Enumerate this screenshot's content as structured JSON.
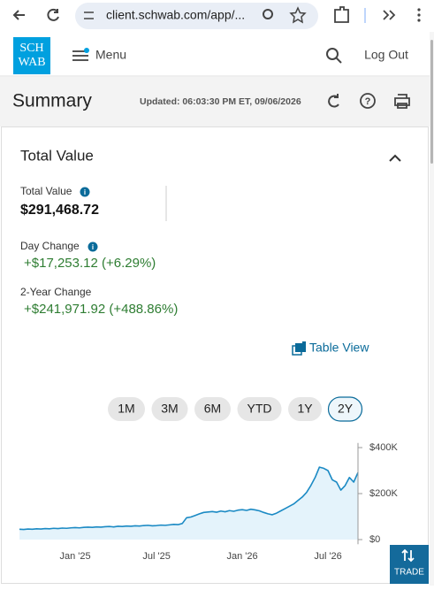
{
  "browser": {
    "url": "client.schwab.com/app/..."
  },
  "header": {
    "logo": [
      "SCH",
      "WAB"
    ],
    "menu": "Menu",
    "logout": "Log Out"
  },
  "summary": {
    "title": "Summary",
    "updated": "Updated: 06:03:30 PM ET, 09/06/2026"
  },
  "card": {
    "title": "Total Value",
    "total_label": "Total Value",
    "total_value": "$291,468.72",
    "day_label": "Day Change",
    "day_value": "+$17,253.12 (+6.29%)",
    "change_label": "2-Year Change",
    "change_value": "+$241,971.92 (+488.86%)",
    "table_view": "Table View",
    "ranges": [
      "1M",
      "3M",
      "6M",
      "YTD",
      "1Y",
      "2Y"
    ],
    "selected_range": "2Y"
  },
  "chart_data": {
    "type": "line",
    "color": "#1b8ac4",
    "fill_color": "#e4f3fb",
    "categories": [
      null,
      null,
      null,
      null,
      null,
      null,
      null,
      null,
      null,
      null,
      null,
      null,
      null,
      "Jan '25",
      null,
      null,
      null,
      null,
      null,
      null,
      null,
      null,
      null,
      null,
      null,
      null,
      null,
      null,
      null,
      null,
      null,
      null,
      "Jul '25",
      null,
      null,
      null,
      null,
      null,
      null,
      null,
      null,
      null,
      null,
      null,
      null,
      null,
      null,
      null,
      null,
      null,
      null,
      null,
      "Jan '26",
      null,
      null,
      null,
      null,
      null,
      null,
      null,
      null,
      null,
      null,
      null,
      null,
      null,
      null,
      null,
      null,
      null,
      null,
      null,
      "Jul '26",
      null,
      null,
      null,
      null,
      null,
      null,
      null
    ],
    "values": [
      45000,
      44000,
      46000,
      45000,
      47000,
      46000,
      48000,
      47000,
      49000,
      48000,
      50000,
      49000,
      51000,
      52000,
      51000,
      53000,
      54000,
      53000,
      55000,
      54000,
      56000,
      57000,
      55000,
      58000,
      57000,
      59000,
      58000,
      60000,
      59000,
      61000,
      62000,
      60000,
      61000,
      63000,
      62000,
      64000,
      66000,
      65000,
      70000,
      95000,
      98000,
      105000,
      112000,
      118000,
      120000,
      122000,
      119000,
      124000,
      121000,
      126000,
      123000,
      128000,
      130000,
      127000,
      132000,
      129000,
      125000,
      118000,
      112000,
      108000,
      115000,
      125000,
      135000,
      145000,
      155000,
      170000,
      185000,
      205000,
      235000,
      270000,
      315000,
      310000,
      300000,
      260000,
      250000,
      215000,
      235000,
      270000,
      250000,
      291469
    ],
    "ylim": [
      -20000,
      420000
    ],
    "yticks": [
      {
        "value": 0,
        "label": "$0"
      },
      {
        "value": 200000,
        "label": "$200K"
      },
      {
        "value": 400000,
        "label": "$400K"
      }
    ]
  },
  "trade": "TRADE"
}
